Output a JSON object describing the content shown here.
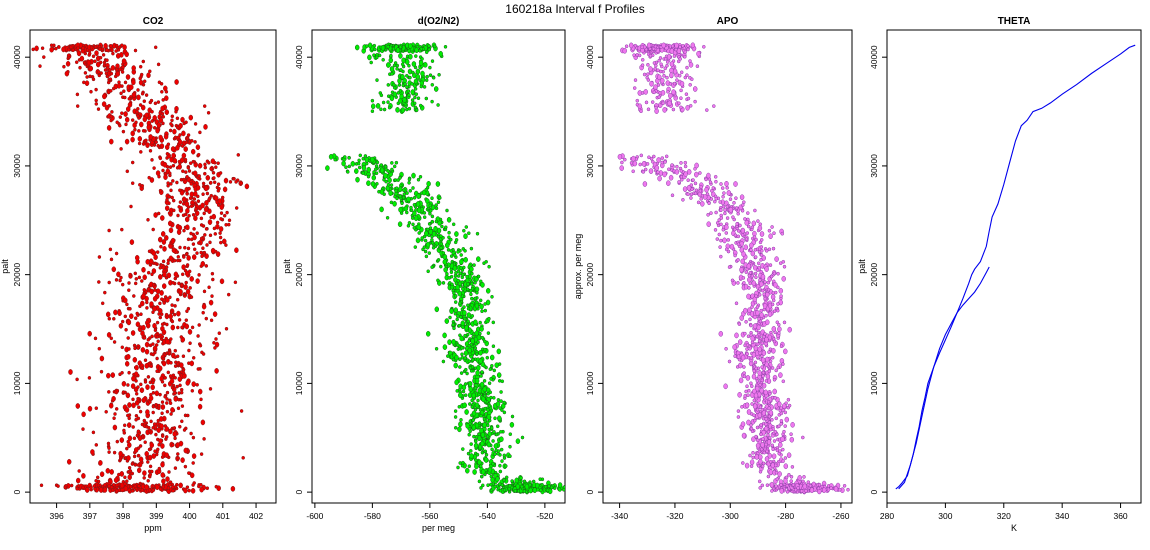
{
  "figure": {
    "title": "160218a   Interval f Profiles"
  },
  "chart_data": [
    {
      "type": "scatter",
      "title": "CO2",
      "xlabel": "ppm",
      "ylabel": "palt",
      "xlim": [
        395.2,
        402.6
      ],
      "ylim": [
        -1000,
        42500
      ],
      "xticks": [
        396,
        397,
        398,
        399,
        400,
        401,
        402
      ],
      "yticks": [
        0,
        10000,
        20000,
        30000,
        40000
      ],
      "fill_color": "#ee0000",
      "edge_color": "#7a1a1a",
      "profile": [
        [
          0,
          398.2,
          1.1
        ],
        [
          2000,
          398.5,
          0.9
        ],
        [
          5000,
          398.8,
          0.85
        ],
        [
          8000,
          398.9,
          0.85
        ],
        [
          11000,
          399.0,
          0.8
        ],
        [
          14000,
          399.1,
          0.8
        ],
        [
          17000,
          399.1,
          0.8
        ],
        [
          20000,
          399.2,
          0.8
        ],
        [
          23000,
          399.8,
          0.7
        ],
        [
          26000,
          400.2,
          0.7
        ],
        [
          29000,
          400.1,
          0.7
        ],
        [
          32000,
          399.4,
          0.7
        ],
        [
          35000,
          398.6,
          0.7
        ],
        [
          38000,
          397.8,
          0.7
        ],
        [
          40000,
          397.2,
          0.7
        ],
        [
          41000,
          396.8,
          0.6
        ]
      ]
    },
    {
      "type": "scatter",
      "title": "d(O2/N2)",
      "xlabel": "per meg",
      "ylabel": "palt",
      "xlim": [
        -601,
        -513
      ],
      "ylim": [
        -1000,
        42500
      ],
      "xticks": [
        -600,
        -580,
        -560,
        -540,
        -520
      ],
      "yticks": [
        0,
        10000,
        20000,
        30000,
        40000
      ],
      "fill_color": "#00ee00",
      "edge_color": "#1a5a1a",
      "profile": [
        [
          300,
          -525,
          6
        ],
        [
          2000,
          -541,
          4
        ],
        [
          5000,
          -541,
          4
        ],
        [
          8000,
          -541,
          4
        ],
        [
          11000,
          -543,
          4
        ],
        [
          14000,
          -547,
          4
        ],
        [
          17000,
          -547,
          4
        ],
        [
          20000,
          -548,
          4
        ],
        [
          23000,
          -557,
          5
        ],
        [
          26000,
          -563,
          5
        ],
        [
          29000,
          -573,
          6
        ],
        [
          30500,
          -585,
          5
        ],
        [
          35500,
          -570,
          6
        ],
        [
          38000,
          -567,
          5
        ],
        [
          41000,
          -570,
          6
        ]
      ],
      "gaps": [
        [
          31000,
          35000
        ]
      ]
    },
    {
      "type": "scatter",
      "title": "APO",
      "xlabel": "",
      "ylabel": "approx. per meg",
      "xlim": [
        -346,
        -256
      ],
      "ylim": [
        -1000,
        42500
      ],
      "xticks": [
        -340,
        -320,
        -300,
        -280,
        -260
      ],
      "yticks": [
        0,
        10000,
        20000,
        30000,
        40000
      ],
      "fill_color": "#ee77ee",
      "edge_color": "#8a3fa6",
      "profile": [
        [
          300,
          -272,
          6
        ],
        [
          2000,
          -287,
          4
        ],
        [
          5000,
          -287,
          4
        ],
        [
          8000,
          -287,
          4
        ],
        [
          11000,
          -289,
          4
        ],
        [
          14000,
          -290,
          4
        ],
        [
          17000,
          -289,
          4
        ],
        [
          20000,
          -290,
          4
        ],
        [
          23000,
          -295,
          5
        ],
        [
          26000,
          -300,
          5
        ],
        [
          29000,
          -315,
          6
        ],
        [
          30500,
          -330,
          5
        ],
        [
          35500,
          -323,
          6
        ],
        [
          38000,
          -323,
          5
        ],
        [
          41000,
          -325,
          6
        ]
      ],
      "gaps": [
        [
          31000,
          35000
        ]
      ]
    },
    {
      "type": "line",
      "title": "THETA",
      "xlabel": "K",
      "ylabel": "palt",
      "xlim": [
        280,
        367
      ],
      "ylim": [
        -1000,
        42500
      ],
      "xticks": [
        280,
        300,
        320,
        340,
        360
      ],
      "yticks": [
        0,
        10000,
        20000,
        30000,
        40000
      ],
      "line_color": "#0000ee",
      "series": [
        {
          "x": [
            283,
            284,
            285,
            287,
            288,
            289,
            290,
            291,
            292,
            293,
            294,
            296,
            298,
            300,
            302,
            304,
            306,
            308,
            309,
            310,
            312,
            314,
            315,
            316,
            318,
            320,
            322,
            324,
            326,
            328,
            330,
            333,
            336,
            340,
            345,
            350,
            355,
            360,
            363,
            365
          ],
          "y": [
            300,
            500,
            800,
            1500,
            2500,
            3500,
            4800,
            6000,
            7500,
            8700,
            10000,
            11500,
            12800,
            14000,
            15200,
            16500,
            17800,
            19200,
            20000,
            20500,
            21200,
            22600,
            24000,
            25300,
            26500,
            28300,
            30300,
            32300,
            33700,
            34200,
            35000,
            35300,
            35800,
            36600,
            37500,
            38500,
            39400,
            40300,
            40900,
            41100
          ]
        },
        {
          "x": [
            284,
            286,
            288,
            290,
            292,
            294,
            296,
            298,
            300,
            302,
            304,
            306,
            308,
            310,
            312,
            314,
            315
          ],
          "y": [
            300,
            900,
            2500,
            4500,
            7000,
            9500,
            11500,
            13200,
            14500,
            15500,
            16500,
            17200,
            17800,
            18400,
            19200,
            20200,
            20700
          ]
        }
      ]
    }
  ]
}
